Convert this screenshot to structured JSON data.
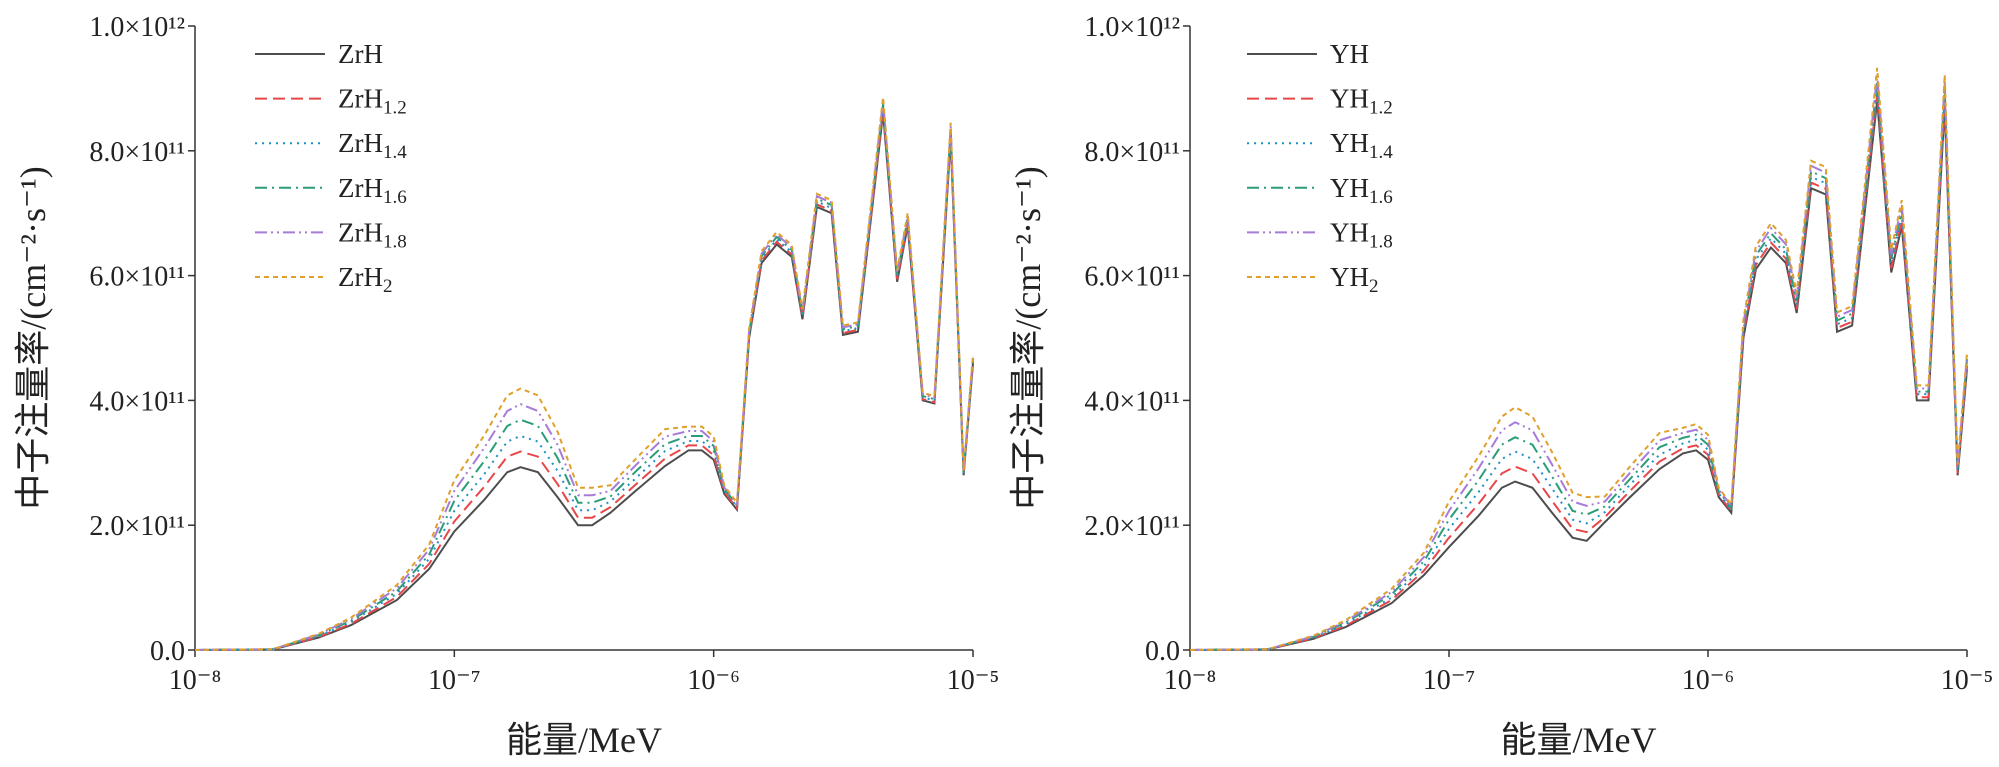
{
  "chart_data": [
    {
      "type": "line",
      "xscale": "log",
      "xlabel": "能量/MeV",
      "ylabel": "中子注量率/(cm⁻²·s⁻¹)",
      "xlim": [
        1e-08,
        1e-05
      ],
      "ylim": [
        0,
        1000000000000.0
      ],
      "xticks": [
        {
          "value": 1e-08,
          "label": "10⁻⁸"
        },
        {
          "value": 1e-07,
          "label": "10⁻⁷"
        },
        {
          "value": 1e-06,
          "label": "10⁻⁶"
        },
        {
          "value": 1e-05,
          "label": "10⁻⁵"
        }
      ],
      "yticks": [
        {
          "value": 0,
          "label": "0.0"
        },
        {
          "value": 200000000000.0,
          "label": "2.0×10¹¹"
        },
        {
          "value": 400000000000.0,
          "label": "4.0×10¹¹"
        },
        {
          "value": 600000000000.0,
          "label": "6.0×10¹¹"
        },
        {
          "value": 800000000000.0,
          "label": "8.0×10¹¹"
        },
        {
          "value": 1000000000000.0,
          "label": "1.0×10¹²"
        }
      ],
      "x": [
        1e-08,
        2e-08,
        3e-08,
        4e-08,
        6e-08,
        8e-08,
        1e-07,
        1.3e-07,
        1.6e-07,
        1.8e-07,
        2.1e-07,
        2.5e-07,
        3e-07,
        3.4e-07,
        4e-07,
        5e-07,
        6.5e-07,
        8e-07,
        9e-07,
        1e-06,
        1.1e-06,
        1.23e-06,
        1.37e-06,
        1.53e-06,
        1.75e-06,
        2e-06,
        2.2e-06,
        2.5e-06,
        2.85e-06,
        3.15e-06,
        3.6e-06,
        4.5e-06,
        5.1e-06,
        5.6e-06,
        6.4e-06,
        7.1e-06,
        8.2e-06,
        9.2e-06,
        1e-05
      ],
      "series": [
        {
          "name": "ZrH",
          "color": "#4d4d4d",
          "dash": "solid",
          "values": [
            0,
            1000000000.0,
            20000000000.0,
            40000000000.0,
            80000000000.0,
            130000000000.0,
            190000000000.0,
            240000000000.0,
            285000000000.0,
            293000000000.0,
            285000000000.0,
            245000000000.0,
            200000000000.0,
            200000000000.0,
            220000000000.0,
            255000000000.0,
            295000000000.0,
            320000000000.0,
            320000000000.0,
            305000000000.0,
            250000000000.0,
            225000000000.0,
            500000000000.0,
            620000000000.0,
            650000000000.0,
            630000000000.0,
            530000000000.0,
            710000000000.0,
            700000000000.0,
            505000000000.0,
            510000000000.0,
            860000000000.0,
            590000000000.0,
            680000000000.0,
            400000000000.0,
            395000000000.0,
            820000000000.0,
            280000000000.0,
            460000000000.0
          ]
        },
        {
          "name": "ZrH1.2",
          "color": "#e8474a",
          "dash": "dash",
          "values": [
            0,
            1000000000.0,
            21000000000.0,
            42000000000.0,
            85000000000.0,
            138000000000.0,
            206000000000.0,
            261000000000.0,
            310000000000.0,
            318000000000.0,
            310000000000.0,
            266000000000.0,
            212000000000.0,
            212000000000.0,
            229000000000.0,
            265000000000.0,
            307000000000.0,
            328000000000.0,
            328000000000.0,
            312000000000.0,
            253000000000.0,
            227000000000.0,
            503000000000.0,
            624000000000.0,
            654000000000.0,
            634000000000.0,
            533000000000.0,
            714000000000.0,
            704000000000.0,
            508000000000.0,
            513000000000.0,
            865000000000.0,
            594000000000.0,
            684000000000.0,
            402000000000.0,
            397000000000.0,
            825000000000.0,
            282000000000.0,
            463000000000.0
          ]
        },
        {
          "name": "ZrH1.4",
          "color": "#1e90c8",
          "dash": "dot",
          "values": [
            0,
            1100000000.0,
            22000000000.0,
            45000000000.0,
            90000000000.0,
            146000000000.0,
            223000000000.0,
            281000000000.0,
            334000000000.0,
            343000000000.0,
            334000000000.0,
            287000000000.0,
            224000000000.0,
            224000000000.0,
            238000000000.0,
            275000000000.0,
            319000000000.0,
            335000000000.0,
            335000000000.0,
            320000000000.0,
            255000000000.0,
            230000000000.0,
            506000000000.0,
            627000000000.0,
            658000000000.0,
            638000000000.0,
            536000000000.0,
            719000000000.0,
            708000000000.0,
            511000000000.0,
            516000000000.0,
            870000000000.0,
            597000000000.0,
            688000000000.0,
            405000000000.0,
            400000000000.0,
            830000000000.0,
            283000000000.0,
            466000000000.0
          ]
        },
        {
          "name": "ZrH1.6",
          "color": "#2a9d78",
          "dash": "dashdot",
          "values": [
            0,
            1200000000.0,
            24000000000.0,
            47000000000.0,
            94000000000.0,
            153000000000.0,
            239000000000.0,
            302000000000.0,
            359000000000.0,
            369000000000.0,
            359000000000.0,
            308000000000.0,
            236000000000.0,
            236000000000.0,
            246000000000.0,
            286000000000.0,
            330000000000.0,
            343000000000.0,
            343000000000.0,
            327000000000.0,
            258000000000.0,
            232000000000.0,
            509000000000.0,
            631000000000.0,
            662000000000.0,
            641000000000.0,
            540000000000.0,
            723000000000.0,
            713000000000.0,
            514000000000.0,
            519000000000.0,
            875000000000.0,
            601000000000.0,
            692000000000.0,
            407000000000.0,
            402000000000.0,
            835000000000.0,
            285000000000.0,
            468000000000.0
          ]
        },
        {
          "name": "ZrH1.8",
          "color": "#a77bd8",
          "dash": "dashdotdot",
          "values": [
            0,
            1200000000.0,
            25000000000.0,
            50000000000.0,
            99000000000.0,
            161000000000.0,
            255000000000.0,
            323000000000.0,
            383000000000.0,
            394000000000.0,
            383000000000.0,
            329000000000.0,
            248000000000.0,
            248000000000.0,
            255000000000.0,
            296000000000.0,
            342000000000.0,
            351000000000.0,
            351000000000.0,
            334000000000.0,
            260000000000.0,
            234000000000.0,
            512000000000.0,
            635000000000.0,
            666000000000.0,
            645000000000.0,
            543000000000.0,
            727000000000.0,
            717000000000.0,
            517000000000.0,
            522000000000.0,
            881000000000.0,
            604000000000.0,
            696000000000.0,
            410000000000.0,
            404000000000.0,
            840000000000.0,
            287000000000.0,
            471000000000.0
          ]
        },
        {
          "name": "ZrH2",
          "color": "#e0a02c",
          "dash": "shortdash",
          "values": [
            0,
            1300000000.0,
            26000000000.0,
            52000000000.0,
            104000000000.0,
            169000000000.0,
            272000000000.0,
            343000000000.0,
            408000000000.0,
            419000000000.0,
            408000000000.0,
            350000000000.0,
            260000000000.0,
            260000000000.0,
            264000000000.0,
            306000000000.0,
            354000000000.0,
            358000000000.0,
            358000000000.0,
            342000000000.0,
            263000000000.0,
            236000000000.0,
            515000000000.0,
            639000000000.0,
            670000000000.0,
            649000000000.0,
            546000000000.0,
            731000000000.0,
            721000000000.0,
            520000000000.0,
            525000000000.0,
            886000000000.0,
            608000000000.0,
            700000000000.0,
            412000000000.0,
            407000000000.0,
            845000000000.0,
            288000000000.0,
            474000000000.0
          ]
        }
      ]
    },
    {
      "type": "line",
      "xscale": "log",
      "xlabel": "能量/MeV",
      "ylabel": "中子注量率/(cm⁻²·s⁻¹)",
      "xlim": [
        1e-08,
        1e-05
      ],
      "ylim": [
        0,
        1000000000000.0
      ],
      "xticks": [
        {
          "value": 1e-08,
          "label": "10⁻⁸"
        },
        {
          "value": 1e-07,
          "label": "10⁻⁷"
        },
        {
          "value": 1e-06,
          "label": "10⁻⁶"
        },
        {
          "value": 1e-05,
          "label": "10⁻⁵"
        }
      ],
      "yticks": [
        {
          "value": 0,
          "label": "0.0"
        },
        {
          "value": 200000000000.0,
          "label": "2.0×10¹¹"
        },
        {
          "value": 400000000000.0,
          "label": "4.0×10¹¹"
        },
        {
          "value": 600000000000.0,
          "label": "6.0×10¹¹"
        },
        {
          "value": 800000000000.0,
          "label": "8.0×10¹¹"
        },
        {
          "value": 1000000000000.0,
          "label": "1.0×10¹²"
        }
      ],
      "x": [
        1e-08,
        2e-08,
        3e-08,
        4e-08,
        6e-08,
        8e-08,
        1e-07,
        1.3e-07,
        1.6e-07,
        1.8e-07,
        2.1e-07,
        2.5e-07,
        3e-07,
        3.4e-07,
        4e-07,
        5e-07,
        6.5e-07,
        8e-07,
        9e-07,
        1e-06,
        1.1e-06,
        1.23e-06,
        1.37e-06,
        1.53e-06,
        1.75e-06,
        2e-06,
        2.2e-06,
        2.5e-06,
        2.85e-06,
        3.15e-06,
        3.6e-06,
        4.5e-06,
        5.1e-06,
        5.6e-06,
        6.4e-06,
        7.1e-06,
        8.2e-06,
        9.2e-06,
        1e-05
      ],
      "series": [
        {
          "name": "YH",
          "color": "#4d4d4d",
          "dash": "solid",
          "values": [
            0,
            1000000000.0,
            18000000000.0,
            37000000000.0,
            75000000000.0,
            120000000000.0,
            165000000000.0,
            215000000000.0,
            260000000000.0,
            270000000000.0,
            260000000000.0,
            220000000000.0,
            180000000000.0,
            175000000000.0,
            205000000000.0,
            245000000000.0,
            290000000000.0,
            315000000000.0,
            320000000000.0,
            305000000000.0,
            245000000000.0,
            220000000000.0,
            500000000000.0,
            610000000000.0,
            645000000000.0,
            620000000000.0,
            540000000000.0,
            740000000000.0,
            730000000000.0,
            510000000000.0,
            520000000000.0,
            880000000000.0,
            605000000000.0,
            680000000000.0,
            400000000000.0,
            400000000000.0,
            870000000000.0,
            280000000000.0,
            450000000000.0
          ]
        },
        {
          "name": "YH1.2",
          "color": "#e8474a",
          "dash": "dash",
          "values": [
            0,
            1000000000.0,
            19000000000.0,
            39000000000.0,
            80000000000.0,
            127000000000.0,
            180000000000.0,
            234000000000.0,
            283000000000.0,
            294000000000.0,
            283000000000.0,
            239000000000.0,
            194000000000.0,
            189000000000.0,
            213000000000.0,
            255000000000.0,
            302000000000.0,
            323000000000.0,
            328000000000.0,
            313000000000.0,
            248000000000.0,
            223000000000.0,
            506000000000.0,
            617000000000.0,
            653000000000.0,
            627000000000.0,
            546000000000.0,
            749000000000.0,
            739000000000.0,
            516000000000.0,
            526000000000.0,
            891000000000.0,
            612000000000.0,
            688000000000.0,
            405000000000.0,
            405000000000.0,
            880000000000.0,
            283000000000.0,
            455000000000.0
          ]
        },
        {
          "name": "YH1.4",
          "color": "#1e90c8",
          "dash": "dot",
          "values": [
            0,
            1100000000.0,
            20000000000.0,
            41000000000.0,
            84000000000.0,
            134000000000.0,
            194000000000.0,
            253000000000.0,
            306000000000.0,
            318000000000.0,
            306000000000.0,
            259000000000.0,
            209000000000.0,
            203000000000.0,
            221000000000.0,
            265000000000.0,
            313000000000.0,
            331000000000.0,
            337000000000.0,
            321000000000.0,
            251000000000.0,
            225000000000.0,
            512000000000.0,
            625000000000.0,
            660000000000.0,
            635000000000.0,
            553000000000.0,
            758000000000.0,
            748000000000.0,
            522000000000.0,
            532000000000.0,
            901000000000.0,
            620000000000.0,
            696000000000.0,
            410000000000.0,
            410000000000.0,
            891000000000.0,
            287000000000.0,
            461000000000.0
          ]
        },
        {
          "name": "YH1.6",
          "color": "#2a9d78",
          "dash": "dashdot",
          "values": [
            0,
            1200000000.0,
            21000000000.0,
            44000000000.0,
            89000000000.0,
            142000000000.0,
            209000000000.0,
            272000000000.0,
            329000000000.0,
            341000000000.0,
            329000000000.0,
            278000000000.0,
            223000000000.0,
            217000000000.0,
            230000000000.0,
            274000000000.0,
            325000000000.0,
            340000000000.0,
            345000000000.0,
            329000000000.0,
            254000000000.0,
            228000000000.0,
            518000000000.0,
            632000000000.0,
            668000000000.0,
            642000000000.0,
            559000000000.0,
            767000000000.0,
            756000000000.0,
            528000000000.0,
            539000000000.0,
            912000000000.0,
            627000000000.0,
            704000000000.0,
            414000000000.0,
            414000000000.0,
            901000000000.0,
            290000000000.0,
            466000000000.0
          ]
        },
        {
          "name": "YH1.8",
          "color": "#a77bd8",
          "dash": "dashdotdot",
          "values": [
            0,
            1200000000.0,
            22000000000.0,
            46000000000.0,
            93000000000.0,
            149000000000.0,
            223000000000.0,
            291000000000.0,
            352000000000.0,
            365000000000.0,
            352000000000.0,
            297000000000.0,
            238000000000.0,
            231000000000.0,
            238000000000.0,
            284000000000.0,
            336000000000.0,
            348000000000.0,
            353000000000.0,
            337000000000.0,
            257000000000.0,
            231000000000.0,
            524000000000.0,
            639000000000.0,
            676000000000.0,
            650000000000.0,
            566000000000.0,
            776000000000.0,
            765000000000.0,
            534000000000.0,
            545000000000.0,
            922000000000.0,
            634000000000.0,
            713000000000.0,
            419000000000.0,
            419000000000.0,
            912000000000.0,
            293000000000.0,
            472000000000.0
          ]
        },
        {
          "name": "YH2",
          "color": "#e0a02c",
          "dash": "shortdash",
          "values": [
            0,
            1300000000.0,
            23000000000.0,
            48000000000.0,
            98000000000.0,
            156000000000.0,
            238000000000.0,
            310000000000.0,
            374000000000.0,
            389000000000.0,
            374000000000.0,
            317000000000.0,
            252000000000.0,
            245000000000.0,
            246000000000.0,
            294000000000.0,
            348000000000.0,
            356000000000.0,
            362000000000.0,
            345000000000.0,
            260000000000.0,
            233000000000.0,
            530000000000.0,
            647000000000.0,
            684000000000.0,
            657000000000.0,
            572000000000.0,
            784000000000.0,
            774000000000.0,
            541000000000.0,
            551000000000.0,
            933000000000.0,
            641000000000.0,
            721000000000.0,
            424000000000.0,
            424000000000.0,
            922000000000.0,
            297000000000.0,
            477000000000.0
          ]
        }
      ]
    }
  ]
}
